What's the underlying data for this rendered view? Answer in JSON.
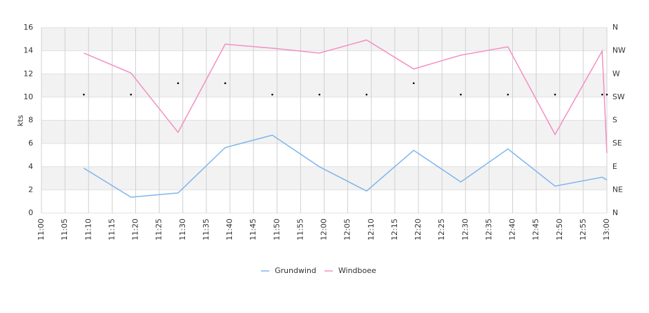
{
  "chart_data": {
    "type": "line",
    "y_label": "kts",
    "x": [
      "11:09",
      "11:19",
      "11:29",
      "11:39",
      "11:49",
      "11:59",
      "12:09",
      "12:19",
      "12:29",
      "12:39",
      "12:49",
      "12:59",
      "13:00"
    ],
    "xlim": [
      "11:00",
      "13:00"
    ],
    "xticks": [
      "11:00",
      "11:05",
      "11:10",
      "11:15",
      "11:20",
      "11:25",
      "11:30",
      "11:35",
      "11:40",
      "11:45",
      "11:50",
      "11:55",
      "12:00",
      "12:05",
      "12:10",
      "12:15",
      "12:20",
      "12:25",
      "12:30",
      "12:35",
      "12:40",
      "12:45",
      "12:50",
      "12:55",
      "13:00"
    ],
    "ylim": [
      0,
      16
    ],
    "yticks": [
      0,
      2,
      4,
      6,
      8,
      10,
      12,
      14,
      16
    ],
    "y2lim": [
      0,
      360
    ],
    "y2ticks": [
      {
        "value": 0,
        "label": "N"
      },
      {
        "value": 45,
        "label": "NE"
      },
      {
        "value": 90,
        "label": "E"
      },
      {
        "value": 135,
        "label": "SE"
      },
      {
        "value": 180,
        "label": "S"
      },
      {
        "value": 225,
        "label": "SW"
      },
      {
        "value": 270,
        "label": "W"
      },
      {
        "value": 315,
        "label": "NW"
      },
      {
        "value": 360,
        "label": "N"
      }
    ],
    "grid": true,
    "series": [
      {
        "name": "Grundwind",
        "color": "#7cb5ec",
        "values": [
          3.87,
          1.37,
          1.73,
          5.65,
          6.72,
          3.99,
          1.9,
          5.41,
          2.68,
          5.53,
          2.32,
          3.09,
          2.86
        ]
      },
      {
        "name": "Windboee",
        "color": "#f28fc1",
        "values": [
          13.8,
          12.08,
          6.96,
          14.57,
          14.22,
          13.8,
          14.93,
          12.43,
          13.62,
          14.34,
          6.78,
          13.98,
          5.18
        ]
      }
    ],
    "direction": {
      "axis": "y2",
      "color": "#000000",
      "values": [
        230,
        230,
        252,
        252,
        230,
        230,
        230,
        252,
        230,
        230,
        230,
        230,
        230
      ]
    }
  }
}
